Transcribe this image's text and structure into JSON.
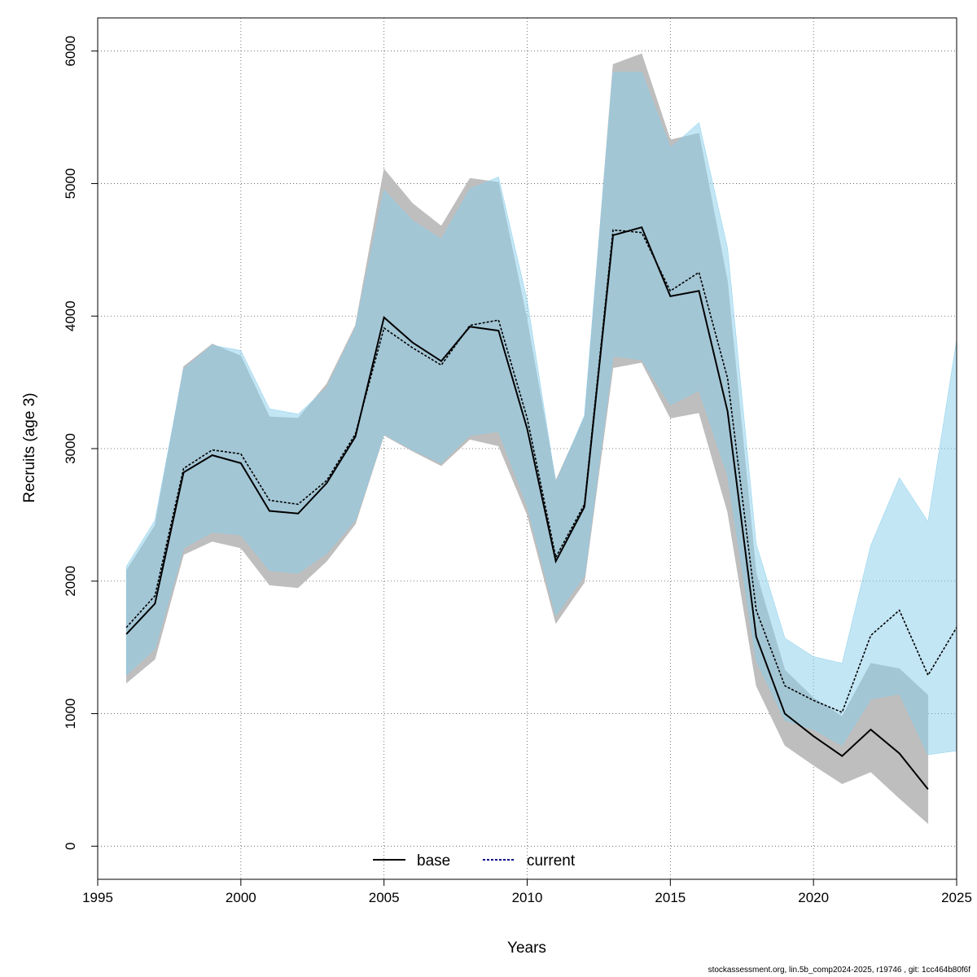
{
  "chart_data": {
    "type": "line",
    "xlabel": "Years",
    "ylabel": "Recruits (age 3)",
    "xlim": [
      1995,
      2025
    ],
    "ylim": [
      -250,
      6250
    ],
    "x_ticks": [
      "1995",
      "2000",
      "2005",
      "2010",
      "2015",
      "2020",
      "2025"
    ],
    "y_ticks": [
      "0",
      "1000",
      "2000",
      "3000",
      "4000",
      "5000",
      "6000"
    ],
    "grid": true,
    "legend": {
      "position": "bottom-center",
      "entries": [
        "base",
        "current"
      ]
    },
    "footer": "stockassessment.org, lin.5b_comp2024-2025, r19746 , git: 1cc464b80f6f",
    "colors": {
      "base_line": "#000000",
      "base_band": "#bebebe",
      "current_line": "#000000",
      "current_band": "#87ceeb",
      "current_legend_line": "#00008b"
    },
    "series": [
      {
        "name": "base",
        "style": "solid",
        "x": [
          1996,
          1997,
          1998,
          1999,
          2000,
          2001,
          2002,
          2003,
          2004,
          2005,
          2006,
          2007,
          2008,
          2009,
          2010,
          2011,
          2012,
          2013,
          2014,
          2015,
          2016,
          2017,
          2018,
          2019,
          2020,
          2021,
          2022,
          2023,
          2024
        ],
        "y": [
          1600,
          1830,
          2820,
          2950,
          2890,
          2530,
          2510,
          2740,
          3090,
          3990,
          3800,
          3660,
          3920,
          3890,
          3150,
          2150,
          2560,
          4610,
          4670,
          4150,
          4190,
          3280,
          1580,
          1000,
          830,
          680,
          880,
          700,
          430
        ],
        "lower": [
          1230,
          1410,
          2200,
          2300,
          2250,
          1970,
          1950,
          2150,
          2430,
          3100,
          2980,
          2870,
          3070,
          3020,
          2500,
          1680,
          1990,
          3610,
          3650,
          3230,
          3270,
          2520,
          1210,
          760,
          610,
          470,
          560,
          360,
          170
        ],
        "upper": [
          2080,
          2420,
          3620,
          3790,
          3700,
          3240,
          3230,
          3490,
          3930,
          5110,
          4850,
          4680,
          5040,
          5010,
          3970,
          2760,
          3240,
          5900,
          5980,
          5330,
          5380,
          4260,
          2060,
          1330,
          1120,
          980,
          1380,
          1340,
          1140
        ]
      },
      {
        "name": "current",
        "style": "dotted",
        "x": [
          1996,
          1997,
          1998,
          1999,
          2000,
          2001,
          2002,
          2003,
          2004,
          2005,
          2006,
          2007,
          2008,
          2009,
          2010,
          2011,
          2012,
          2013,
          2014,
          2015,
          2016,
          2017,
          2018,
          2019,
          2020,
          2021,
          2022,
          2023,
          2024,
          2025
        ],
        "y": [
          1650,
          1890,
          2850,
          2990,
          2960,
          2610,
          2580,
          2760,
          3110,
          3910,
          3760,
          3630,
          3930,
          3970,
          3230,
          2180,
          2580,
          4650,
          4630,
          4190,
          4330,
          3530,
          1780,
          1210,
          1100,
          1010,
          1590,
          1780,
          1290,
          1650
        ],
        "lower": [
          1290,
          1490,
          2250,
          2370,
          2350,
          2080,
          2060,
          2210,
          2460,
          3110,
          2990,
          2890,
          3100,
          3130,
          2570,
          1740,
          2040,
          3700,
          3670,
          3330,
          3440,
          2800,
          1400,
          950,
          880,
          760,
          1110,
          1150,
          690,
          720
        ],
        "upper": [
          2110,
          2460,
          3600,
          3780,
          3740,
          3300,
          3260,
          3460,
          3910,
          4950,
          4720,
          4580,
          4960,
          5050,
          4120,
          2740,
          3250,
          5840,
          5840,
          5270,
          5460,
          4510,
          2280,
          1570,
          1430,
          1380,
          2270,
          2780,
          2450,
          3820
        ]
      }
    ]
  }
}
